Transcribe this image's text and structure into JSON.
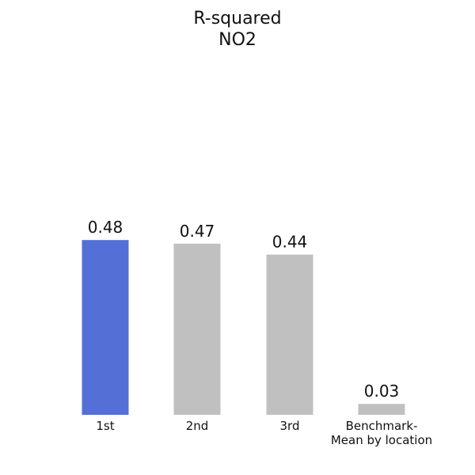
{
  "chart_data": {
    "type": "bar",
    "title_lines": [
      "R-squared",
      "NO2"
    ],
    "categories": [
      [
        "1st"
      ],
      [
        "2nd"
      ],
      [
        "3rd"
      ],
      [
        "Benchmark-",
        "Mean by location"
      ]
    ],
    "values": [
      0.48,
      0.47,
      0.44,
      0.03
    ],
    "value_labels": [
      "0.48",
      "0.47",
      "0.44",
      "0.03"
    ],
    "ylim": [
      0,
      1.0
    ],
    "grid": false,
    "legend": "none",
    "colors": [
      "#5470d6",
      "#c0c0c0",
      "#c0c0c0",
      "#c0c0c0"
    ]
  }
}
